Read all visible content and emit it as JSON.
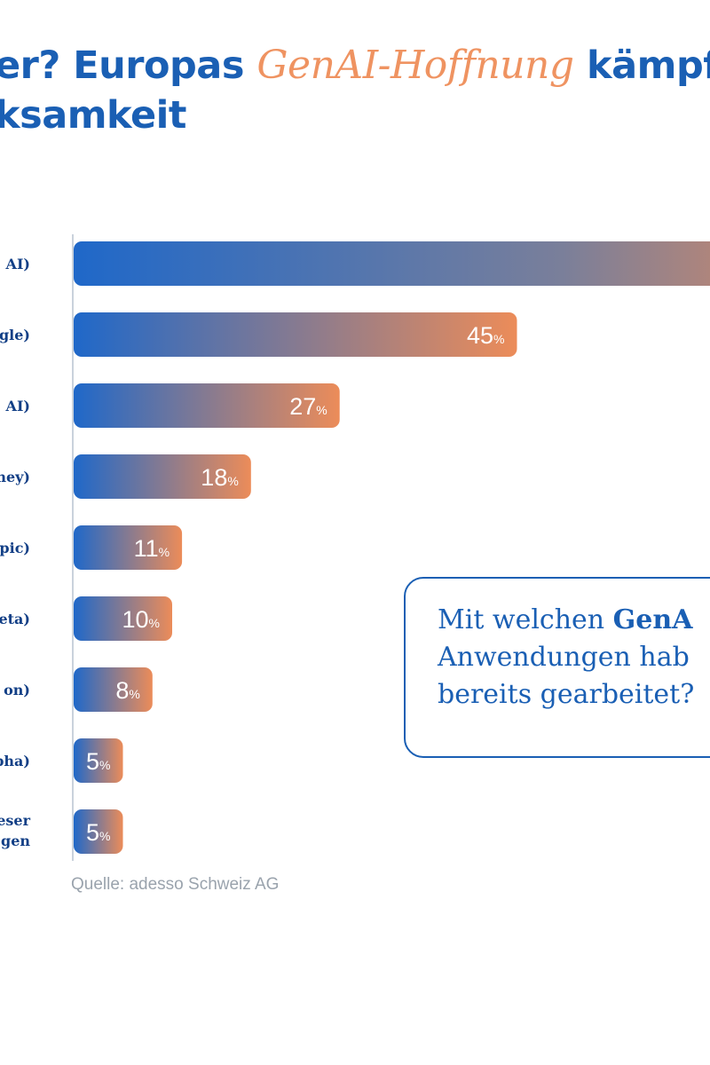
{
  "header": {
    "title_part1": "er? Europas ",
    "title_highlight": "GenAI-Hoffnung",
    "title_part2": " kämpft",
    "title_line2": "ksamkeit"
  },
  "question": {
    "line1_prefix": "Mit welchen ",
    "line1_bold": "GenA",
    "line2": "Anwendungen hab",
    "line3": "bereits gearbeitet?"
  },
  "source": "Quelle: adesso Schweiz AG",
  "colors": {
    "brand_blue": "#1a5fb4",
    "bar_start": "#1f68c9",
    "bar_end": "#ec8c59",
    "accent_orange": "#ef9361"
  },
  "chart_data": {
    "type": "bar",
    "orientation": "horizontal",
    "title": "",
    "unit": "%",
    "categories": [
      "AI)",
      "gle)",
      "AI)",
      "ney)",
      "pic)",
      "eta)",
      "on)",
      "pha)",
      "eser gen"
    ],
    "category_lines": [
      [
        "AI)"
      ],
      [
        "gle)"
      ],
      [
        "AI)"
      ],
      [
        "ney)"
      ],
      [
        "pic)"
      ],
      [
        "eta)"
      ],
      [
        "on)"
      ],
      [
        "pha)"
      ],
      [
        "eser",
        "gen"
      ]
    ],
    "values": [
      null,
      45,
      27,
      18,
      11,
      10,
      8,
      5,
      5
    ],
    "value_labels": [
      "",
      "45",
      "27",
      "18",
      "11",
      "10",
      "8",
      "5",
      "5"
    ],
    "visible_full_bar_min": 72,
    "xlim": [
      0,
      100
    ]
  }
}
